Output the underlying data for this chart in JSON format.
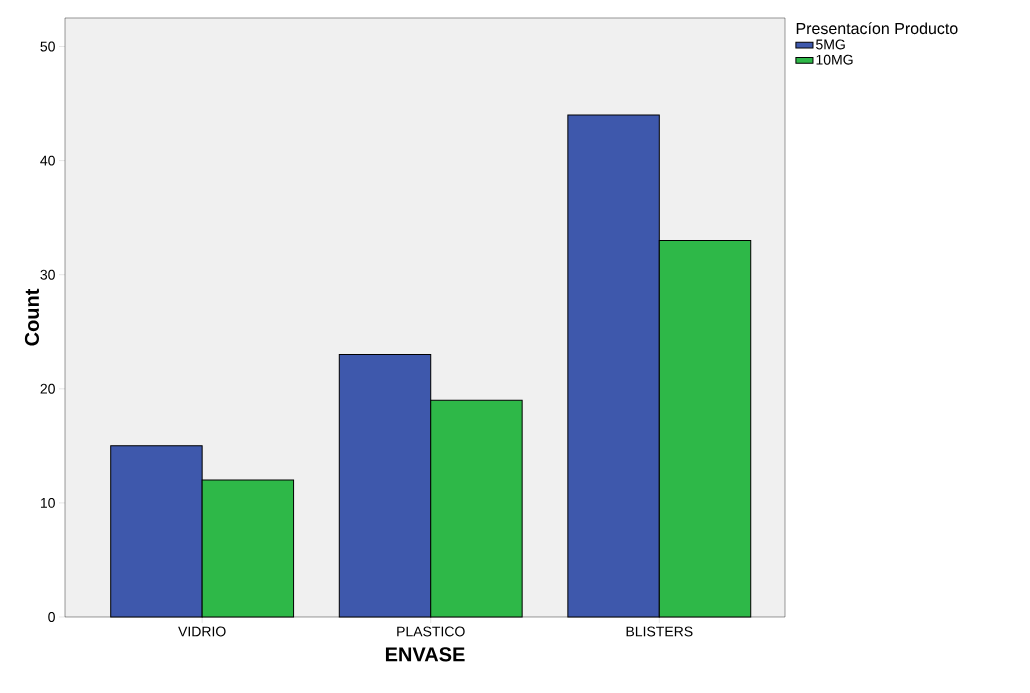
{
  "chart_data": {
    "type": "bar",
    "xlabel": "ENVASE",
    "ylabel": "Count",
    "legend_title": "Presentacíon Producto",
    "categories": [
      "VIDRIO",
      "PLASTICO",
      "BLISTERS"
    ],
    "series": [
      {
        "name": "5MG",
        "color": "#3e58ac",
        "values": [
          15,
          23,
          44
        ]
      },
      {
        "name": "10MG",
        "color": "#2eb848",
        "values": [
          12,
          19,
          33
        ]
      }
    ],
    "ylim": [
      0,
      52.5
    ],
    "yticks": [
      0,
      10,
      20,
      30,
      40,
      50
    ],
    "grid": false,
    "legend": "top right"
  }
}
